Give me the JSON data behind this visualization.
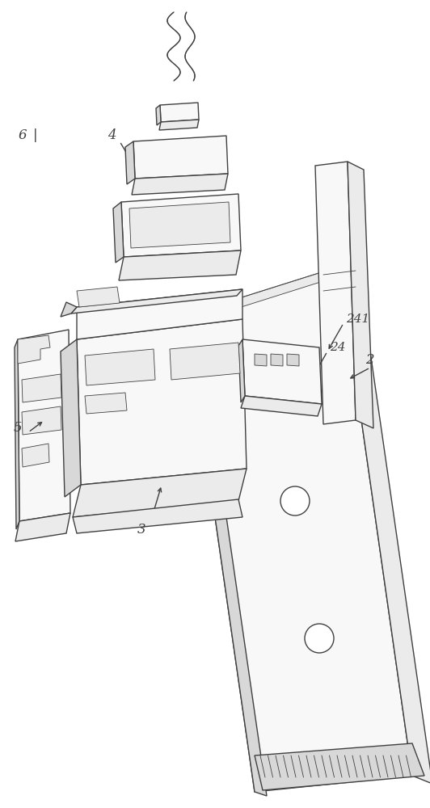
{
  "fig_width": 5.32,
  "fig_height": 10.0,
  "dpi": 100,
  "lc": "#404040",
  "lw": 1.0,
  "lw_thin": 0.6,
  "fc_light": "#f8f8f8",
  "fc_mid": "#ebebeb",
  "fc_dark": "#d8d8d8",
  "fc_white": "#ffffff",
  "label_fs": 12,
  "label_fs_small": 11
}
